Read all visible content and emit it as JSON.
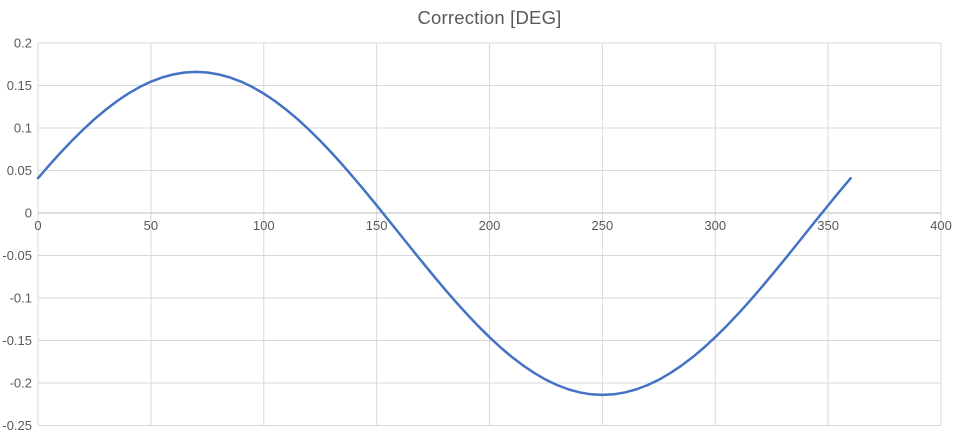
{
  "chart_data": {
    "type": "line",
    "title": "Correction [DEG]",
    "xlabel": "",
    "ylabel": "",
    "xlim": [
      0,
      400
    ],
    "ylim": [
      -0.25,
      0.2
    ],
    "grid": true,
    "legend": false,
    "x_ticks": {
      "values": [
        0,
        50,
        100,
        150,
        200,
        250,
        300,
        350,
        400
      ],
      "labels": [
        "0",
        "50",
        "100",
        "150",
        "200",
        "250",
        "300",
        "350",
        "400"
      ]
    },
    "y_ticks": {
      "values": [
        0.2,
        0.15,
        0.1,
        0.05,
        0,
        -0.05,
        -0.1,
        -0.15,
        -0.2,
        -0.25
      ],
      "labels": [
        "0.2",
        "0.15",
        "0.1",
        "0.05",
        "0",
        "-0.05",
        "-0.1",
        "-0.15",
        "-0.2",
        "-0.25"
      ]
    },
    "x": [
      0,
      5,
      10,
      15,
      20,
      25,
      30,
      35,
      40,
      45,
      50,
      55,
      60,
      65,
      70,
      75,
      80,
      85,
      90,
      95,
      100,
      105,
      110,
      115,
      120,
      125,
      130,
      135,
      140,
      145,
      150,
      155,
      160,
      165,
      170,
      175,
      180,
      185,
      190,
      195,
      200,
      205,
      210,
      215,
      220,
      225,
      230,
      235,
      240,
      245,
      250,
      255,
      260,
      265,
      270,
      275,
      280,
      285,
      290,
      295,
      300,
      305,
      310,
      315,
      320,
      325,
      330,
      335,
      340,
      345,
      350,
      355,
      360
    ],
    "series": [
      {
        "name": "Correction",
        "values": [
          0.041,
          0.0563,
          0.071,
          0.085,
          0.0981,
          0.1104,
          0.1215,
          0.1316,
          0.1405,
          0.1482,
          0.1545,
          0.1595,
          0.1631,
          0.1653,
          0.166,
          0.1653,
          0.1631,
          0.1595,
          0.1545,
          0.1482,
          0.1405,
          0.1316,
          0.1215,
          0.1104,
          0.0981,
          0.085,
          0.071,
          0.0563,
          0.041,
          0.0252,
          0.009,
          -0.0074,
          -0.024,
          -0.0406,
          -0.057,
          -0.0732,
          -0.089,
          -0.1043,
          -0.119,
          -0.133,
          -0.1461,
          -0.1584,
          -0.1696,
          -0.1796,
          -0.1885,
          -0.1962,
          -0.2025,
          -0.2075,
          -0.2111,
          -0.2133,
          -0.214,
          -0.2133,
          -0.2111,
          -0.2075,
          -0.2025,
          -0.1962,
          -0.1885,
          -0.1796,
          -0.1696,
          -0.1584,
          -0.1461,
          -0.133,
          -0.119,
          -0.1043,
          -0.089,
          -0.0732,
          -0.057,
          -0.0406,
          -0.024,
          -0.0074,
          0.009,
          0.0252,
          0.041
        ]
      }
    ],
    "colors": {
      "line": "#4472C4",
      "gridline": "#D9D9D9",
      "axis_line": "#BFBFBF",
      "tick_label": "#595959",
      "title": "#595959",
      "background": "#FFFFFF"
    }
  }
}
